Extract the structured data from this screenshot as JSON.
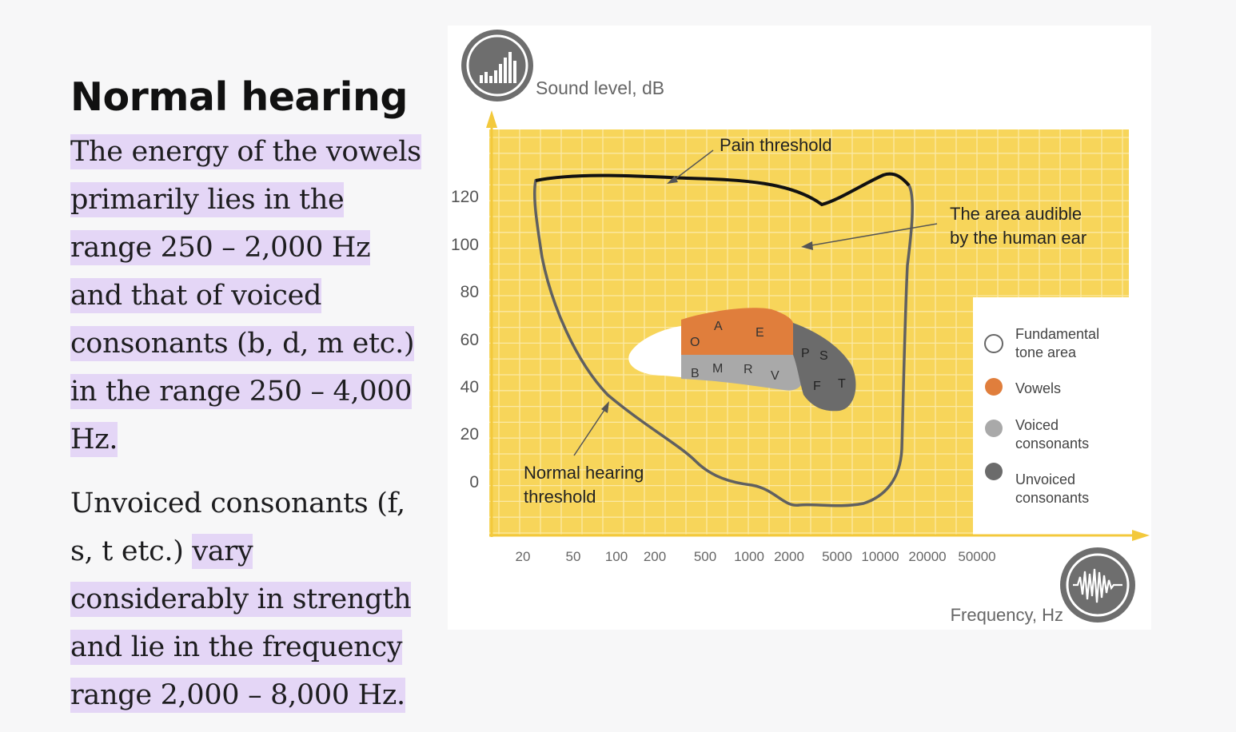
{
  "article": {
    "heading": "Normal hearing",
    "para1_highlight": "The energy of the vowels primarily lies in the range 250 – 2,000 Hz and that of voiced consonants (b, d, m etc.) in the range 250 – 4,000 Hz.",
    "para2_plain": "Unvoiced consonants (f, s, t etc.) ",
    "para2_highlight": "vary considerably in strength and lie in the frequency range 2,000 – 8,000 Hz."
  },
  "figure": {
    "y_axis_title": "Sound level, dB",
    "x_axis_title": "Frequency, Hz",
    "y_ticks": [
      "120",
      "100",
      "80",
      "60",
      "40",
      "20",
      "0"
    ],
    "x_ticks": [
      "20",
      "50",
      "100",
      "200",
      "500",
      "1000",
      "2000",
      "5000",
      "10000",
      "20000",
      "50000"
    ],
    "annotations": {
      "pain": "Pain threshold",
      "area_line1": "The area audible",
      "area_line2": "by the human ear",
      "normal_line1": "Normal hearing",
      "normal_line2": "threshold"
    },
    "vowel_letters": [
      "O",
      "A",
      "E"
    ],
    "voiced_letters": [
      "B",
      "M",
      "R",
      "V"
    ],
    "unvoiced_letters": [
      "P",
      "S",
      "F",
      "T"
    ],
    "legend": [
      {
        "line1": "Fundamental",
        "line2": "tone area",
        "color": "#ffffff"
      },
      {
        "line1": "Vowels",
        "line2": "",
        "color": "#e07e3c"
      },
      {
        "line1": "Voiced",
        "line2": "consonants",
        "color": "#a9a9a9"
      },
      {
        "line1": "Unvoiced",
        "line2": "consonants",
        "color": "#6b6b6b"
      }
    ],
    "colors": {
      "background": "#f7d55a",
      "grid": "#fbe9a5",
      "axis": "#f3c93c",
      "text": "#555555"
    },
    "icons": [
      "bar-chart-icon",
      "sound-wave-icon"
    ]
  }
}
